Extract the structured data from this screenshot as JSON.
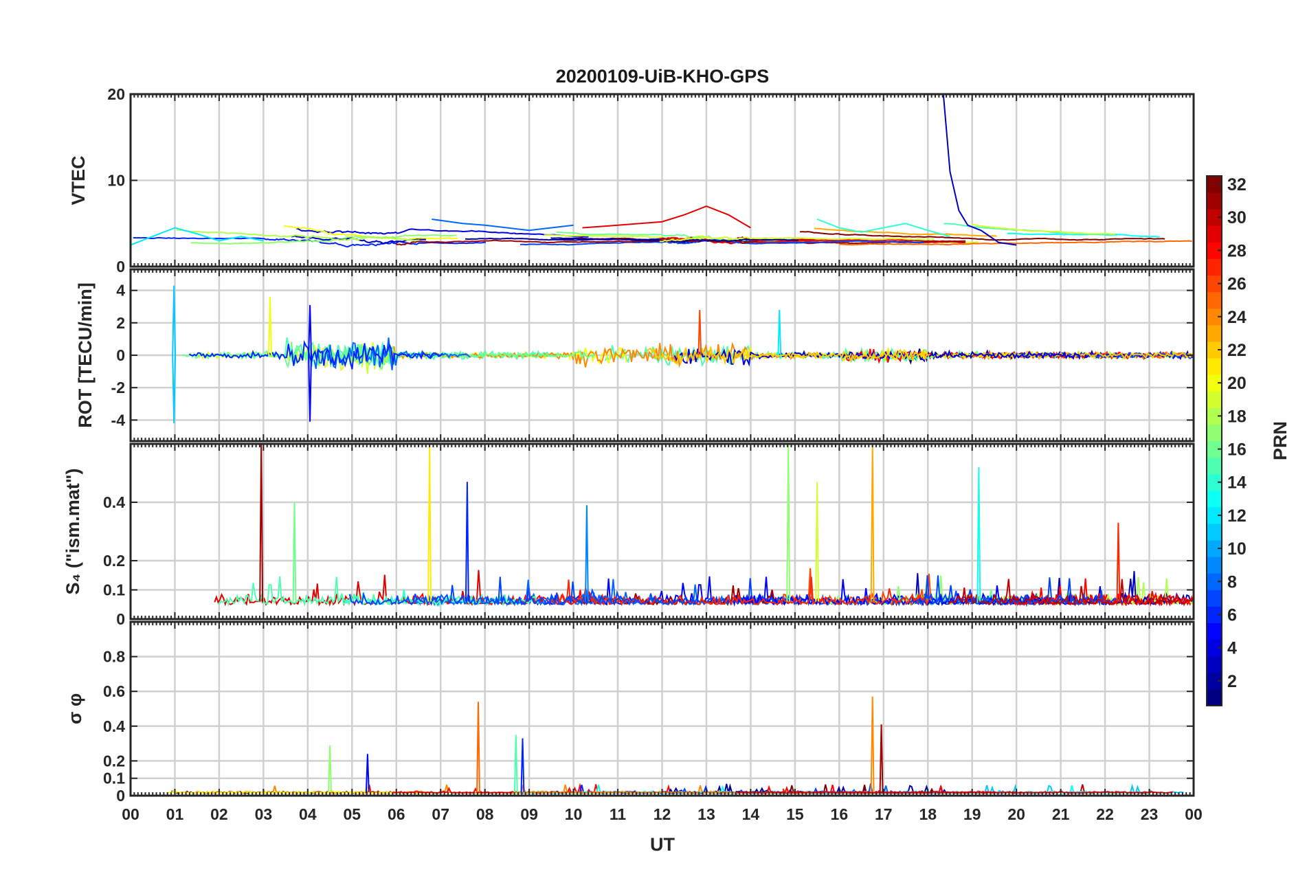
{
  "figure": {
    "title": "20200109-UiB-KHO-GPS",
    "xlabel": "UT",
    "x_tick_labels": [
      "00",
      "01",
      "02",
      "03",
      "04",
      "05",
      "06",
      "07",
      "08",
      "09",
      "10",
      "11",
      "12",
      "13",
      "14",
      "15",
      "16",
      "17",
      "18",
      "19",
      "20",
      "21",
      "22",
      "23",
      "00"
    ],
    "colorbar": {
      "label": "PRN",
      "range": [
        1,
        32
      ],
      "tick_labels": [
        "2",
        "4",
        "6",
        "8",
        "10",
        "12",
        "14",
        "16",
        "18",
        "20",
        "22",
        "24",
        "26",
        "28",
        "30",
        "32"
      ],
      "colormap": [
        "#00008f",
        "#0000ff",
        "#00ffff",
        "#ffff00",
        "#ff0000",
        "#800000"
      ]
    }
  },
  "chart_data": [
    {
      "type": "line",
      "panel": "vtec",
      "ylabel": "VTEC",
      "ylim": [
        0,
        20
      ],
      "y_tick_labels": [
        "0",
        "10",
        "20"
      ],
      "x_unit": "hours UT",
      "grid": true,
      "series": [
        {
          "prn": 3,
          "x": [
            18.35,
            18.5,
            18.7,
            18.9,
            19.2,
            19.6,
            20.0
          ],
          "y": [
            20,
            11,
            6.5,
            4.8,
            4.2,
            2.8,
            2.5
          ]
        },
        {
          "prn": 29,
          "x": [
            10.2,
            11,
            12,
            12.5,
            13,
            13.5,
            14
          ],
          "y": [
            4.5,
            4.8,
            5.2,
            6,
            7,
            6,
            4.5
          ]
        },
        {
          "prn": 12,
          "x": [
            0,
            0.5,
            1,
            1.5,
            2,
            2.5,
            3
          ],
          "y": [
            2.5,
            3.5,
            4.5,
            3.8,
            3,
            3.5,
            3
          ]
        },
        {
          "prn": 8,
          "x": [
            6.8,
            7.5,
            8,
            8.5,
            9,
            9.5,
            10
          ],
          "y": [
            5.5,
            5,
            4.8,
            4.5,
            4.2,
            4.5,
            4.8
          ]
        },
        {
          "prn": 14,
          "x": [
            15.5,
            16,
            16.5,
            17,
            17.5,
            18,
            18.5
          ],
          "y": [
            5.5,
            4.5,
            4,
            4.5,
            5,
            4.2,
            3.5
          ]
        }
      ]
    },
    {
      "type": "line",
      "panel": "rot",
      "ylabel": "ROT [TECU/min]",
      "ylim": [
        -5.3,
        5.3
      ],
      "y_tick_labels": [
        "-4",
        "-2",
        "0",
        "2",
        "4"
      ],
      "grid": true,
      "peaks": [
        {
          "prn": 11,
          "x": 0.98,
          "y": 4.3
        },
        {
          "prn": 11,
          "x": 0.98,
          "y": -4.2
        },
        {
          "prn": 5,
          "x": 4.05,
          "y": -4.1
        },
        {
          "prn": 5,
          "x": 4.05,
          "y": 3.1
        },
        {
          "prn": 20,
          "x": 3.15,
          "y": 3.6
        },
        {
          "prn": 26,
          "x": 12.85,
          "y": 2.8
        },
        {
          "prn": 12,
          "x": 14.65,
          "y": 2.8
        }
      ]
    },
    {
      "type": "line",
      "panel": "s4",
      "ylabel": "S₄ (\"ism.mat\")",
      "ylim": [
        0,
        0.6
      ],
      "y_tick_labels": [
        "0",
        "0.1",
        "0.2",
        "0.4"
      ],
      "grid": true,
      "peaks": [
        {
          "prn": 31,
          "x": 2.95,
          "y": 0.6
        },
        {
          "prn": 21,
          "x": 6.75,
          "y": 0.6
        },
        {
          "prn": 6,
          "x": 7.6,
          "y": 0.47
        },
        {
          "prn": 17,
          "x": 14.85,
          "y": 0.6
        },
        {
          "prn": 23,
          "x": 16.75,
          "y": 0.6
        },
        {
          "prn": 19,
          "x": 15.5,
          "y": 0.47
        },
        {
          "prn": 13,
          "x": 19.15,
          "y": 0.52
        },
        {
          "prn": 16,
          "x": 3.7,
          "y": 0.4
        },
        {
          "prn": 9,
          "x": 10.3,
          "y": 0.39
        },
        {
          "prn": 27,
          "x": 22.3,
          "y": 0.33
        }
      ]
    },
    {
      "type": "line",
      "panel": "sigma_phi",
      "ylabel": "σ φ",
      "ylim": [
        0,
        1
      ],
      "y_tick_labels": [
        "0",
        "0.1",
        "0.2",
        "0.4",
        "0.6",
        "0.8"
      ],
      "grid": true,
      "peaks": [
        {
          "prn": 25,
          "x": 7.85,
          "y": 0.54
        },
        {
          "prn": 24,
          "x": 16.75,
          "y": 0.57
        },
        {
          "prn": 31,
          "x": 16.95,
          "y": 0.41
        },
        {
          "prn": 15,
          "x": 8.7,
          "y": 0.35
        },
        {
          "prn": 6,
          "x": 8.85,
          "y": 0.33
        },
        {
          "prn": 17,
          "x": 4.5,
          "y": 0.29
        },
        {
          "prn": 5,
          "x": 5.35,
          "y": 0.24
        }
      ]
    }
  ]
}
